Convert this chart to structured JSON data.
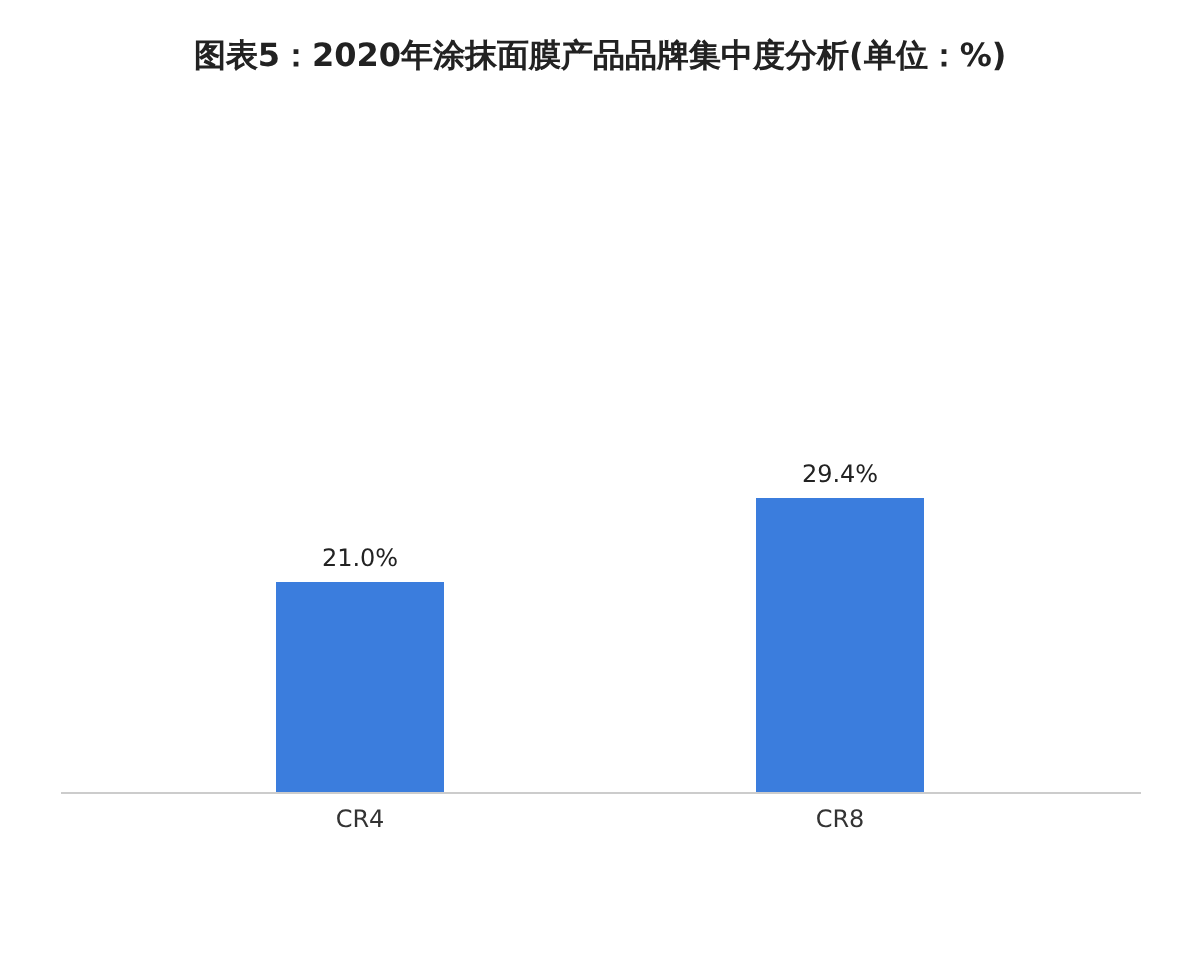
{
  "chart_data": {
    "type": "bar",
    "title": "图表5：2020年涂抹面膜产品品牌集中度分析(单位：%)",
    "categories": [
      "CR4",
      "CR8"
    ],
    "values": [
      21.0,
      29.4
    ],
    "value_labels": [
      "21.0%",
      "29.4%"
    ],
    "color": "#3b7ddd"
  }
}
